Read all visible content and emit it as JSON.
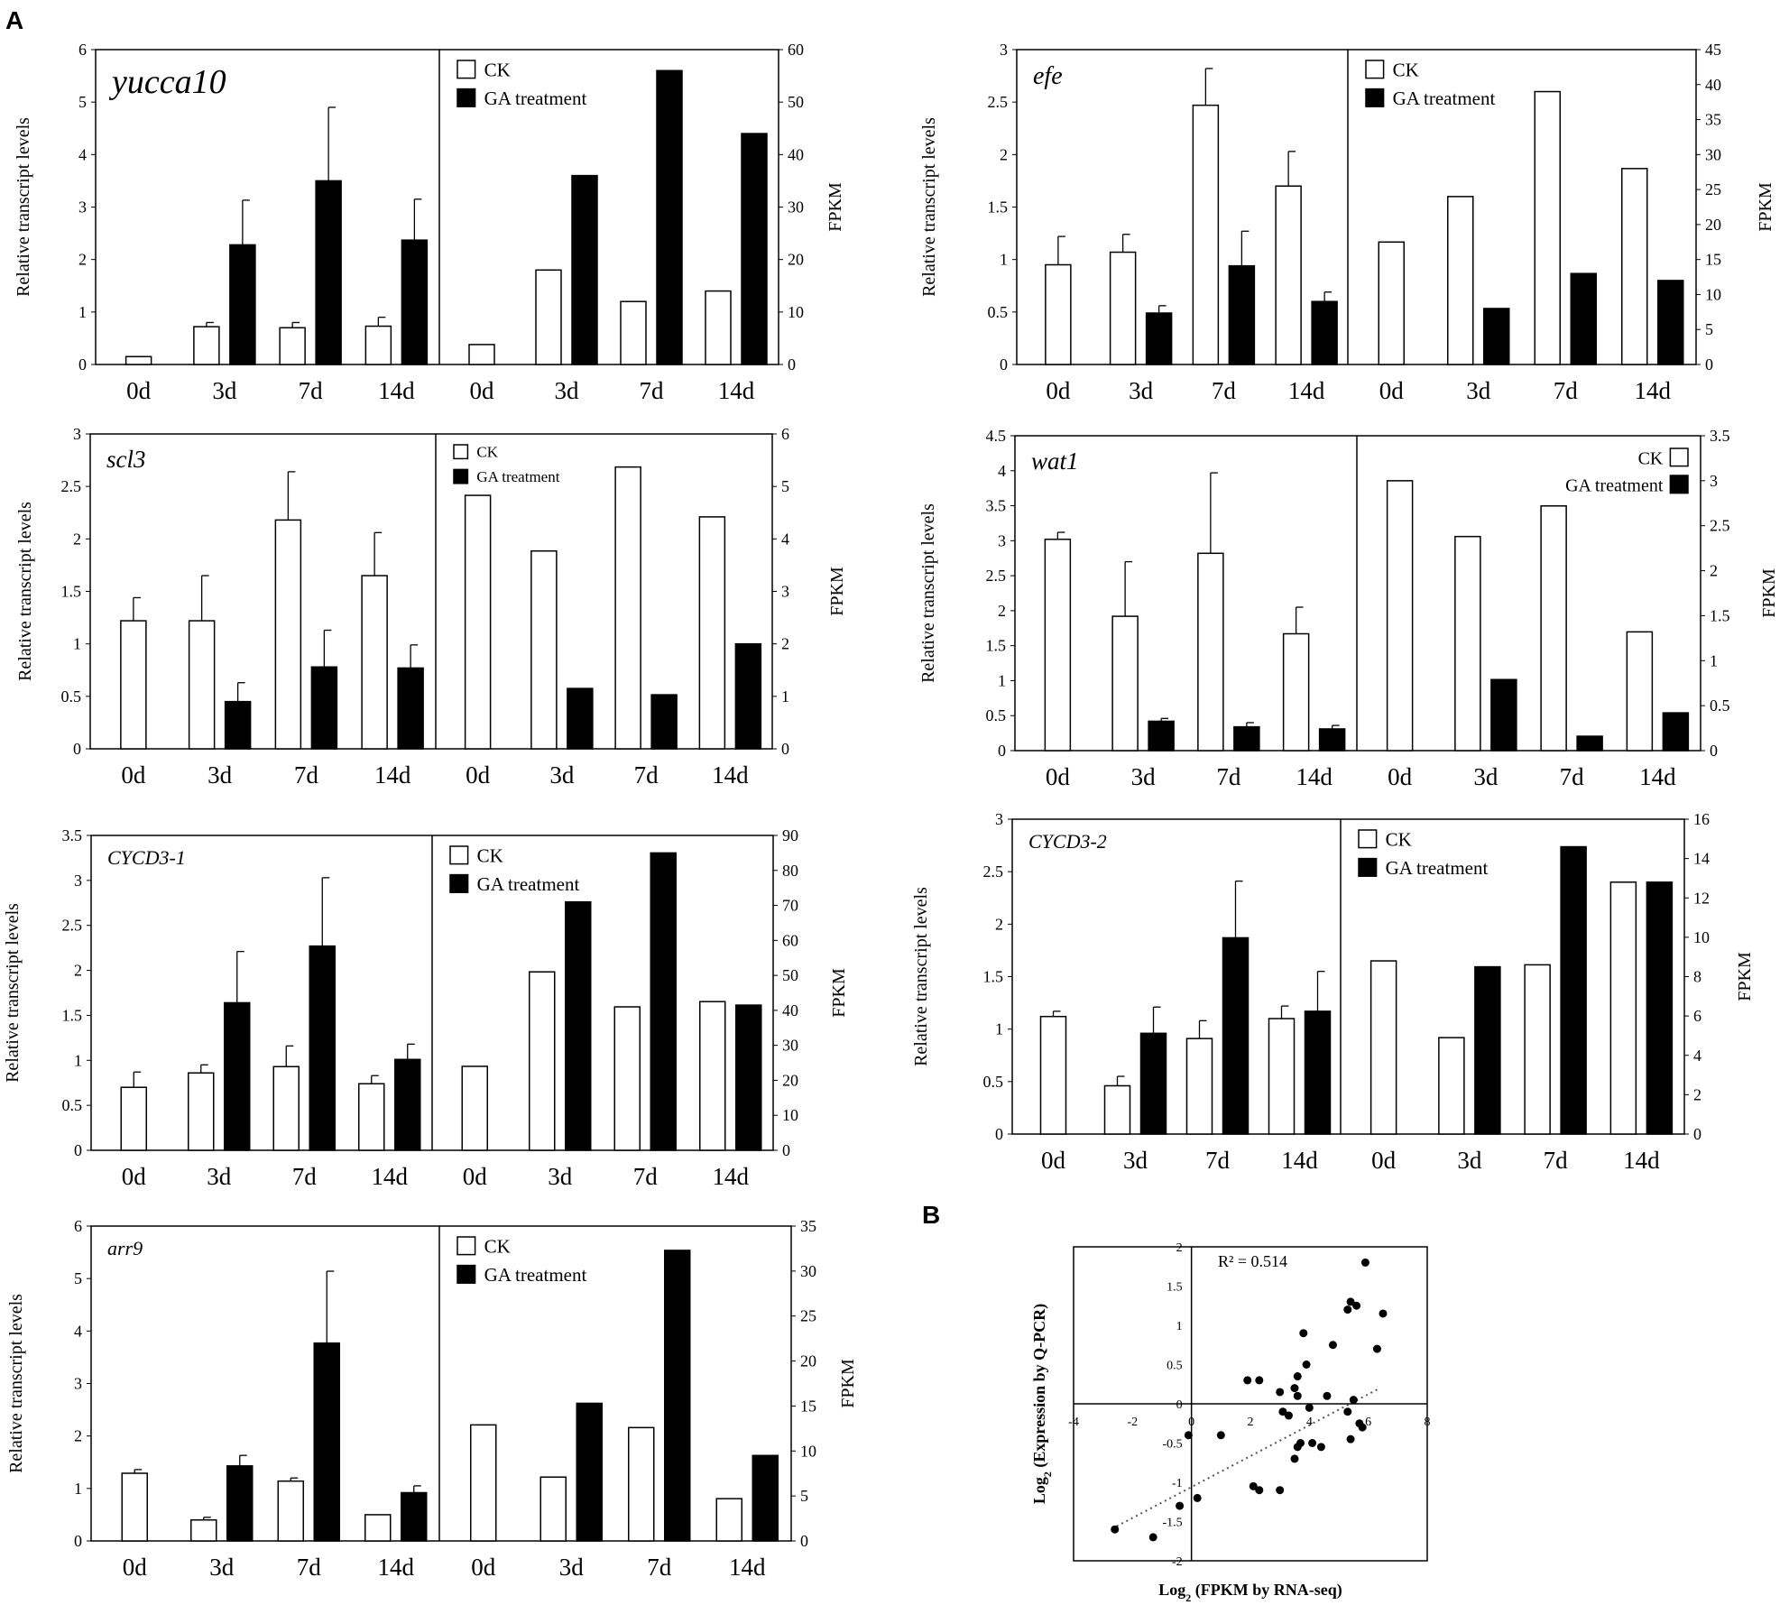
{
  "figure": {
    "panel_a_label": "A",
    "panel_b_label": "B"
  },
  "chart_data": [
    {
      "type": "bar",
      "panel": "A",
      "gene": "yucca10",
      "ylabel_left": "Relative transcript levels",
      "ylabel_right": "FPKM",
      "categories": [
        "0d",
        "3d",
        "7d",
        "14d"
      ],
      "legend": [
        "CK",
        "GA treatment"
      ],
      "legend_position": "top-left",
      "left_ylim": [
        0,
        6
      ],
      "left_ticks": [
        "0",
        "1",
        "2",
        "3",
        "4",
        "5",
        "6"
      ],
      "right_ylim": [
        0,
        60
      ],
      "right_ticks": [
        "0",
        "10",
        "20",
        "30",
        "40",
        "50",
        "60"
      ],
      "qpcr": {
        "ck": [
          0.15,
          0.72,
          0.7,
          0.73
        ],
        "ck_err": [
          0.0,
          0.08,
          0.1,
          0.17
        ],
        "ga": [
          null,
          2.28,
          3.5,
          2.37
        ],
        "ga_err": [
          null,
          0.85,
          1.4,
          0.78
        ]
      },
      "fpkm": {
        "ck": [
          3.8,
          18,
          12,
          14
        ],
        "ga": [
          null,
          36,
          56,
          44
        ]
      }
    },
    {
      "type": "bar",
      "panel": "A",
      "gene": "efe",
      "ylabel_left": "Relative transcript levels",
      "ylabel_right": "FPKM",
      "categories": [
        "0d",
        "3d",
        "7d",
        "14d"
      ],
      "legend": [
        "CK",
        "GA treatment"
      ],
      "legend_position": "top-left",
      "left_ylim": [
        0,
        3
      ],
      "left_ticks": [
        "0",
        "0.5",
        "1",
        "1.5",
        "2",
        "2.5",
        "3"
      ],
      "right_ylim": [
        0,
        45
      ],
      "right_ticks": [
        "0",
        "5",
        "10",
        "15",
        "20",
        "25",
        "30",
        "35",
        "40",
        "45"
      ],
      "qpcr": {
        "ck": [
          0.95,
          1.07,
          2.47,
          1.7
        ],
        "ck_err": [
          0.27,
          0.17,
          0.35,
          0.33
        ],
        "ga": [
          null,
          0.49,
          0.94,
          0.6
        ],
        "ga_err": [
          null,
          0.07,
          0.33,
          0.09
        ]
      },
      "fpkm": {
        "ck": [
          17.5,
          24,
          39,
          28
        ],
        "ga": [
          null,
          8,
          13,
          12
        ]
      }
    },
    {
      "type": "bar",
      "panel": "A",
      "gene": "scl3",
      "ylabel_left": "Relative transcript levels",
      "ylabel_right": "FPKM",
      "categories": [
        "0d",
        "3d",
        "7d",
        "14d"
      ],
      "legend": [
        "CK",
        "GA treatment"
      ],
      "legend_position": "top-left",
      "left_ylim": [
        0,
        3
      ],
      "left_ticks": [
        "0",
        "0.5",
        "1",
        "1.5",
        "2",
        "2.5",
        "3"
      ],
      "right_ylim": [
        0,
        6
      ],
      "right_ticks": [
        "0",
        "1",
        "2",
        "3",
        "4",
        "5",
        "6"
      ],
      "qpcr": {
        "ck": [
          1.22,
          1.22,
          2.18,
          1.65
        ],
        "ck_err": [
          0.22,
          0.43,
          0.46,
          0.41
        ],
        "ga": [
          null,
          0.45,
          0.78,
          0.77
        ],
        "ga_err": [
          null,
          0.18,
          0.35,
          0.22
        ]
      },
      "fpkm": {
        "ck": [
          4.83,
          3.77,
          5.37,
          4.42
        ],
        "ga": [
          null,
          1.15,
          1.03,
          2.0
        ]
      }
    },
    {
      "type": "bar",
      "panel": "A",
      "gene": "wat1",
      "ylabel_left": "Relative transcript levels",
      "ylabel_right": "FPKM",
      "categories": [
        "0d",
        "3d",
        "7d",
        "14d"
      ],
      "legend": [
        "CK",
        "GA treatment"
      ],
      "legend_position": "top-right",
      "left_ylim": [
        0,
        4.5
      ],
      "left_ticks": [
        "0",
        "0.5",
        "1",
        "1.5",
        "2",
        "2.5",
        "3",
        "3.5",
        "4",
        "4.5"
      ],
      "right_ylim": [
        0,
        3.5
      ],
      "right_ticks": [
        "0",
        "0.5",
        "1",
        "1.5",
        "2",
        "2.5",
        "3",
        "3.5"
      ],
      "qpcr": {
        "ck": [
          3.02,
          1.92,
          2.82,
          1.67
        ],
        "ck_err": [
          0.1,
          0.78,
          1.15,
          0.38
        ],
        "ga": [
          null,
          0.42,
          0.34,
          0.31
        ],
        "ga_err": [
          null,
          0.04,
          0.06,
          0.05
        ]
      },
      "fpkm": {
        "ck": [
          3.0,
          2.38,
          2.72,
          1.32
        ],
        "ga": [
          null,
          0.79,
          0.16,
          0.42
        ]
      }
    },
    {
      "type": "bar",
      "panel": "A",
      "gene": "CYCD3-1",
      "ylabel_left": "Relative transcript levels",
      "ylabel_right": "FPKM",
      "categories": [
        "0d",
        "3d",
        "7d",
        "14d"
      ],
      "legend": [
        "CK",
        "GA treatment"
      ],
      "legend_position": "top-left",
      "left_ylim": [
        0,
        3.5
      ],
      "left_ticks": [
        "0",
        "0.5",
        "1",
        "1.5",
        "2",
        "2.5",
        "3",
        "3.5"
      ],
      "right_ylim": [
        0,
        90
      ],
      "right_ticks": [
        "0",
        "10",
        "20",
        "30",
        "40",
        "50",
        "60",
        "70",
        "80",
        "90"
      ],
      "qpcr": {
        "ck": [
          0.7,
          0.86,
          0.93,
          0.74
        ],
        "ck_err": [
          0.17,
          0.09,
          0.23,
          0.09
        ],
        "ga": [
          null,
          1.64,
          2.27,
          1.01
        ],
        "ga_err": [
          null,
          0.57,
          0.76,
          0.17
        ]
      },
      "fpkm": {
        "ck": [
          24,
          51,
          41,
          42.5
        ],
        "ga": [
          null,
          71,
          85,
          41.5
        ]
      }
    },
    {
      "type": "bar",
      "panel": "A",
      "gene": "CYCD3-2",
      "ylabel_left": "Relative transcript levels",
      "ylabel_right": "FPKM",
      "categories": [
        "0d",
        "3d",
        "7d",
        "14d"
      ],
      "legend": [
        "CK",
        "GA treatment"
      ],
      "legend_position": "top-left",
      "left_ylim": [
        0,
        3
      ],
      "left_ticks": [
        "0",
        "0.5",
        "1",
        "1.5",
        "2",
        "2.5",
        "3"
      ],
      "right_ylim": [
        0,
        16
      ],
      "right_ticks": [
        "0",
        "2",
        "4",
        "6",
        "8",
        "10",
        "12",
        "14",
        "16"
      ],
      "qpcr": {
        "ck": [
          1.12,
          0.46,
          0.91,
          1.1
        ],
        "ck_err": [
          0.05,
          0.09,
          0.17,
          0.12
        ],
        "ga": [
          null,
          0.96,
          1.87,
          1.17
        ],
        "ga_err": [
          null,
          0.25,
          0.54,
          0.38
        ]
      },
      "fpkm": {
        "ck": [
          8.8,
          4.9,
          8.6,
          12.8
        ],
        "ga": [
          null,
          8.5,
          14.6,
          12.8
        ]
      }
    },
    {
      "type": "bar",
      "panel": "A",
      "gene": "arr9",
      "ylabel_left": "Relative transcript levels",
      "ylabel_right": "FPKM",
      "categories": [
        "0d",
        "3d",
        "7d",
        "14d"
      ],
      "legend": [
        "CK",
        "GA treatment"
      ],
      "legend_position": "top-left",
      "left_ylim": [
        0,
        6
      ],
      "left_ticks": [
        "0",
        "1",
        "2",
        "3",
        "4",
        "5",
        "6"
      ],
      "right_ylim": [
        0,
        35
      ],
      "right_ticks": [
        "0",
        "5",
        "10",
        "15",
        "20",
        "25",
        "30",
        "35"
      ],
      "qpcr": {
        "ck": [
          1.29,
          0.4,
          1.14,
          0.5
        ],
        "ck_err": [
          0.07,
          0.05,
          0.06,
          0.0
        ],
        "ga": [
          null,
          1.43,
          3.77,
          0.92
        ],
        "ga_err": [
          null,
          0.2,
          1.37,
          0.13
        ]
      },
      "fpkm": {
        "ck": [
          12.9,
          7.1,
          12.6,
          4.7
        ],
        "ga": [
          null,
          15.3,
          32.3,
          9.5
        ]
      }
    },
    {
      "type": "scatter",
      "panel": "B",
      "xlabel": "Log2 (FPKM by RNA-seq)",
      "ylabel": "Log2 (Expression by Q-PCR)",
      "annotation": "R² = 0.514",
      "xlim": [
        -4,
        8
      ],
      "ylim": [
        -2,
        2
      ],
      "x_ticks": [
        "-4",
        "-2",
        "0",
        "2",
        "4",
        "6",
        "8"
      ],
      "y_ticks": [
        "-2",
        "-1.5",
        "-1",
        "-0.5",
        "0",
        "0.5",
        "1",
        "1.5",
        "2"
      ],
      "trendline": {
        "slope": 0.197,
        "intercept": -1.06,
        "style": "dotted",
        "x_range": [
          -2.7,
          6.3
        ]
      },
      "points": [
        [
          -2.6,
          -1.6
        ],
        [
          -1.3,
          -1.7
        ],
        [
          -0.4,
          -1.3
        ],
        [
          0.2,
          -1.2
        ],
        [
          -0.1,
          -0.4
        ],
        [
          1.0,
          -0.4
        ],
        [
          1.9,
          0.3
        ],
        [
          2.3,
          0.3
        ],
        [
          2.1,
          -1.05
        ],
        [
          2.3,
          -1.1
        ],
        [
          3.0,
          -1.1
        ],
        [
          3.0,
          0.15
        ],
        [
          3.1,
          -0.1
        ],
        [
          3.3,
          -0.15
        ],
        [
          3.5,
          -0.7
        ],
        [
          3.6,
          0.35
        ],
        [
          3.5,
          0.2
        ],
        [
          3.6,
          0.1
        ],
        [
          3.7,
          -0.5
        ],
        [
          3.6,
          -0.55
        ],
        [
          3.9,
          0.5
        ],
        [
          3.8,
          0.9
        ],
        [
          4.0,
          -0.05
        ],
        [
          4.1,
          -0.5
        ],
        [
          4.4,
          -0.55
        ],
        [
          4.6,
          0.1
        ],
        [
          4.8,
          0.75
        ],
        [
          5.3,
          -0.1
        ],
        [
          5.4,
          -0.45
        ],
        [
          5.5,
          0.05
        ],
        [
          5.7,
          -0.25
        ],
        [
          5.8,
          -0.3
        ],
        [
          5.3,
          1.2
        ],
        [
          5.4,
          1.3
        ],
        [
          5.6,
          1.25
        ],
        [
          5.9,
          1.8
        ],
        [
          6.3,
          0.7
        ],
        [
          6.5,
          1.15
        ]
      ]
    }
  ]
}
